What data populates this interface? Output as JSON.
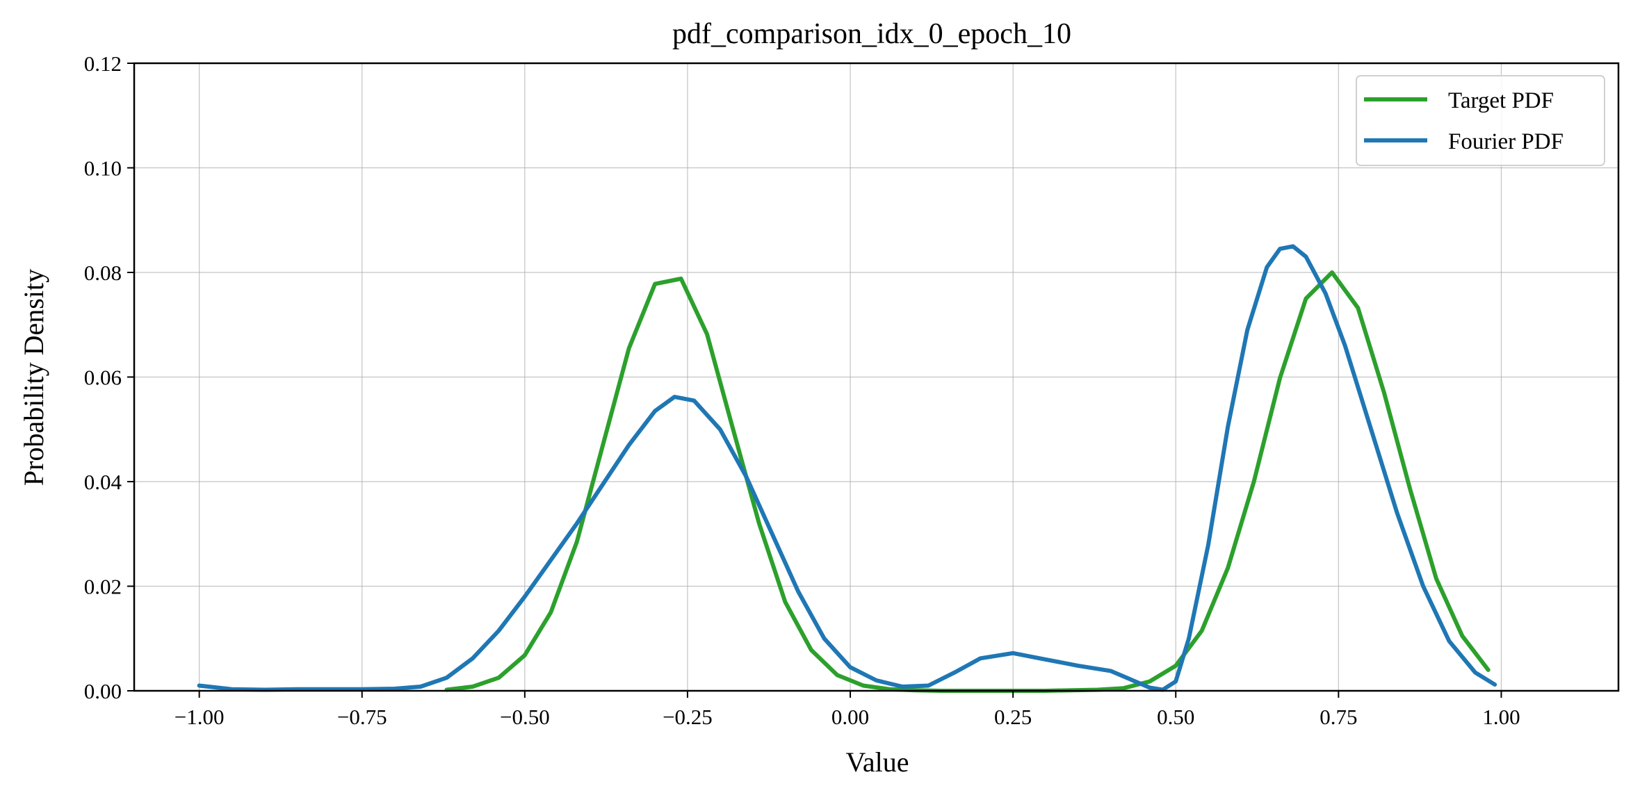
{
  "chart_data": {
    "type": "line",
    "title": "pdf_comparison_idx_0_epoch_10",
    "xlabel": "Value",
    "ylabel": "Probability Density",
    "xlim": [
      -1.1,
      1.18
    ],
    "ylim": [
      0,
      0.12
    ],
    "xticks": [
      -1.0,
      -0.75,
      -0.5,
      -0.25,
      0.0,
      0.25,
      0.5,
      0.75,
      1.0
    ],
    "xtick_labels": [
      "−1.00",
      "−0.75",
      "−0.50",
      "−0.25",
      "0.00",
      "0.25",
      "0.50",
      "0.75",
      "1.00"
    ],
    "yticks": [
      0.0,
      0.02,
      0.04,
      0.06,
      0.08,
      0.1,
      0.12
    ],
    "ytick_labels": [
      "0.00",
      "0.02",
      "0.04",
      "0.06",
      "0.08",
      "0.10",
      "0.12"
    ],
    "grid": true,
    "legend_position": "top-right",
    "series": [
      {
        "name": "Target PDF",
        "color": "#2ca02c",
        "x": [
          -0.62,
          -0.58,
          -0.54,
          -0.5,
          -0.46,
          -0.42,
          -0.38,
          -0.34,
          -0.3,
          -0.26,
          -0.22,
          -0.18,
          -0.14,
          -0.1,
          -0.06,
          -0.02,
          0.02,
          0.06,
          0.1,
          0.14,
          0.18,
          0.22,
          0.26,
          0.3,
          0.34,
          0.38,
          0.42,
          0.46,
          0.5,
          0.54,
          0.58,
          0.62,
          0.66,
          0.7,
          0.74,
          0.78,
          0.82,
          0.86,
          0.9,
          0.94,
          0.98
        ],
        "y": [
          0.0002,
          0.0008,
          0.0025,
          0.0068,
          0.015,
          0.0285,
          0.047,
          0.0655,
          0.0778,
          0.0788,
          0.0682,
          0.05,
          0.032,
          0.017,
          0.0078,
          0.003,
          0.001,
          0.0003,
          0.0001,
          0.0,
          0.0,
          0.0,
          0.0,
          0.0,
          0.0001,
          0.0002,
          0.0005,
          0.0018,
          0.0048,
          0.0115,
          0.0235,
          0.04,
          0.0598,
          0.075,
          0.08,
          0.0732,
          0.057,
          0.0385,
          0.0215,
          0.0105,
          0.004
        ]
      },
      {
        "name": "Fourier PDF",
        "color": "#1f77b4",
        "x": [
          -1.0,
          -0.95,
          -0.9,
          -0.85,
          -0.8,
          -0.75,
          -0.7,
          -0.66,
          -0.62,
          -0.58,
          -0.54,
          -0.5,
          -0.46,
          -0.42,
          -0.38,
          -0.34,
          -0.3,
          -0.27,
          -0.24,
          -0.2,
          -0.16,
          -0.12,
          -0.08,
          -0.04,
          0.0,
          0.04,
          0.08,
          0.12,
          0.16,
          0.2,
          0.25,
          0.3,
          0.35,
          0.4,
          0.43,
          0.46,
          0.48,
          0.5,
          0.52,
          0.55,
          0.58,
          0.61,
          0.64,
          0.66,
          0.68,
          0.7,
          0.73,
          0.76,
          0.8,
          0.84,
          0.88,
          0.92,
          0.96,
          0.99
        ],
        "y": [
          0.001,
          0.0003,
          0.0002,
          0.0003,
          0.0003,
          0.0003,
          0.0004,
          0.0008,
          0.0025,
          0.0062,
          0.0115,
          0.018,
          0.025,
          0.032,
          0.0395,
          0.047,
          0.0535,
          0.0562,
          0.0555,
          0.05,
          0.041,
          0.03,
          0.019,
          0.01,
          0.0045,
          0.002,
          0.0008,
          0.001,
          0.0035,
          0.0062,
          0.0072,
          0.006,
          0.0048,
          0.0038,
          0.0022,
          0.0006,
          0.0002,
          0.0018,
          0.01,
          0.028,
          0.0505,
          0.069,
          0.081,
          0.0845,
          0.085,
          0.083,
          0.076,
          0.066,
          0.05,
          0.034,
          0.02,
          0.0095,
          0.0035,
          0.0012
        ]
      }
    ]
  }
}
